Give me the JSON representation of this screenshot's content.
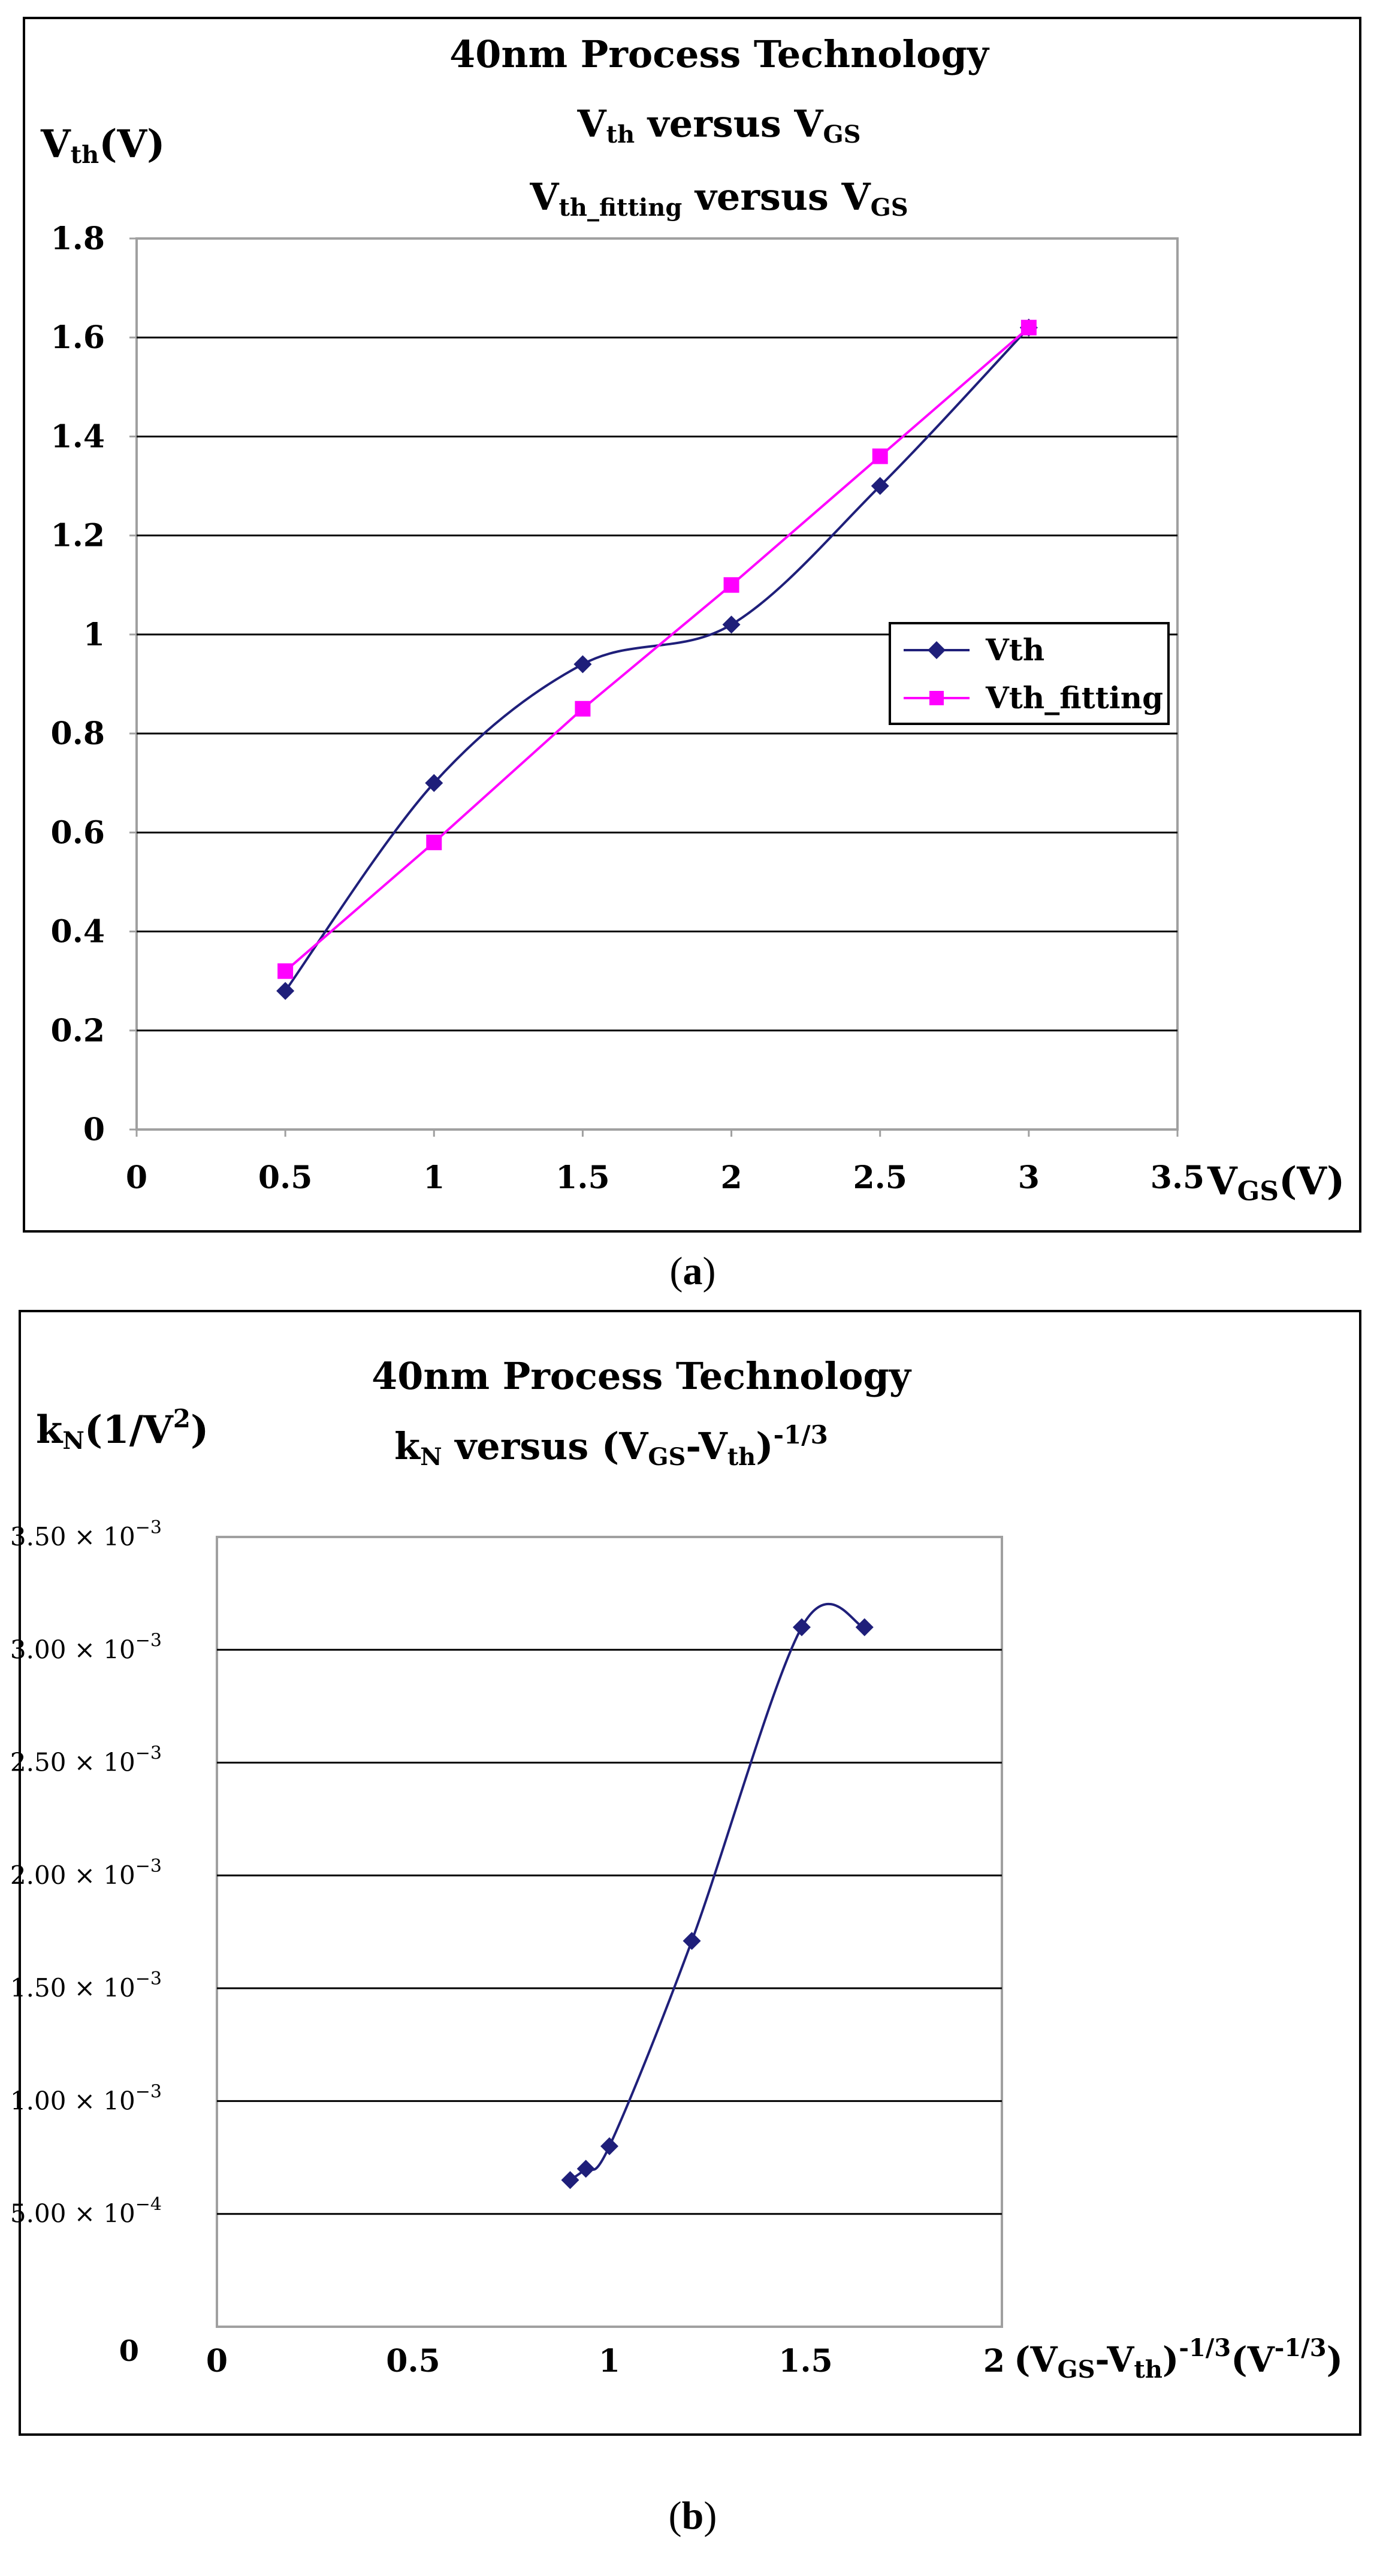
{
  "colors": {
    "vth": "#1f1f7a",
    "vth_fitting": "#ff00ff",
    "grid": "#000000",
    "frame": "#000000",
    "plot_border": "#a0a0a0"
  },
  "chart_data": [
    {
      "type": "line",
      "panel_label": "a",
      "title": "40nm Process Technology",
      "subtitle_1": {
        "main": "V",
        "sub": "th",
        "mid": " versus V",
        "sub2": "GS"
      },
      "subtitle_2": {
        "main": "V",
        "sub": "th_fitting",
        "mid": " versus V",
        "sub2": "GS"
      },
      "ylabel": {
        "main": "V",
        "sub": "th",
        "rest": "(V)"
      },
      "xlabel": {
        "main": "V",
        "sub": "GS",
        "rest": "(V)"
      },
      "xlim": [
        0,
        3.5
      ],
      "ylim": [
        0,
        1.8
      ],
      "x_ticks": [
        "0",
        "0.5",
        "1",
        "1.5",
        "2",
        "2.5",
        "3",
        "3.5"
      ],
      "y_ticks": [
        "0",
        "0.2",
        "0.4",
        "0.6",
        "0.8",
        "1",
        "1.2",
        "1.4",
        "1.6",
        "1.8"
      ],
      "grid": true,
      "legend_position": "right",
      "series": [
        {
          "name": "Vth",
          "marker": "diamond",
          "smooth": true,
          "x": [
            0.5,
            1,
            1.5,
            2,
            2.5,
            3
          ],
          "y": [
            0.28,
            0.7,
            0.94,
            1.02,
            1.3,
            1.62
          ]
        },
        {
          "name": "Vth_fitting",
          "marker": "square",
          "smooth": false,
          "x": [
            0.5,
            1,
            1.5,
            2,
            2.5,
            3
          ],
          "y": [
            0.32,
            0.58,
            0.85,
            1.1,
            1.36,
            1.62
          ]
        }
      ]
    },
    {
      "type": "line",
      "panel_label": "b",
      "title": "40nm Process Technology",
      "subtitle": {
        "k": "k",
        "ksub": "N",
        "mid": " versus (V",
        "sub1": "GS",
        "dash": "-V",
        "sub2": "th",
        "close": ")",
        "sup": "-1/3"
      },
      "ylabel": {
        "k": "k",
        "ksub": "N",
        "rest": "(1/V",
        "sup": "2",
        "close": ")"
      },
      "xlabel": {
        "open": "(V",
        "sub1": "GS",
        "dash": "-V",
        "sub2": "th",
        "close": ")",
        "sup1": "-1/3",
        "unit_open": "(V",
        "sup2": "-1/3",
        "unit_close": ")"
      },
      "xlim": [
        0,
        2
      ],
      "ylim": [
        0,
        0.0035
      ],
      "x_ticks": [
        "0",
        "0.5",
        "1",
        "1.5",
        "2"
      ],
      "y_ticks": [
        {
          "mant": "0",
          "exp": ""
        },
        {
          "mant": "5.00 × 10",
          "exp": "−4"
        },
        {
          "mant": "1.00 × 10",
          "exp": "−3"
        },
        {
          "mant": "1.50 × 10",
          "exp": "−3"
        },
        {
          "mant": "2.00 × 10",
          "exp": "−3"
        },
        {
          "mant": "2.50 × 10",
          "exp": "−3"
        },
        {
          "mant": "3.00 × 10",
          "exp": "−3"
        },
        {
          "mant": "3.50 × 10",
          "exp": "−3"
        }
      ],
      "grid": true,
      "series": [
        {
          "name": "kN",
          "marker": "diamond",
          "smooth": true,
          "x": [
            0.9,
            0.94,
            1.0,
            1.21,
            1.49,
            1.65
          ],
          "y": [
            0.00065,
            0.0007,
            0.0008,
            0.00171,
            0.0031,
            0.0031
          ]
        }
      ]
    }
  ]
}
